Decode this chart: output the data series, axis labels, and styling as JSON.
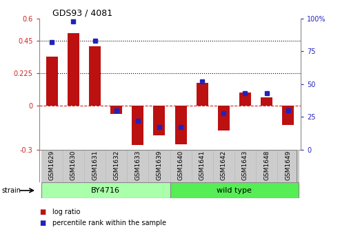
{
  "title": "GDS93 / 4081",
  "categories": [
    "GSM1629",
    "GSM1630",
    "GSM1631",
    "GSM1632",
    "GSM1633",
    "GSM1639",
    "GSM1640",
    "GSM1641",
    "GSM1642",
    "GSM1643",
    "GSM1648",
    "GSM1649"
  ],
  "log_ratios": [
    0.34,
    0.5,
    0.41,
    -0.055,
    -0.27,
    -0.2,
    -0.265,
    0.16,
    -0.17,
    0.09,
    0.06,
    -0.13
  ],
  "percentile_ranks": [
    82,
    98,
    83,
    30,
    22,
    17,
    17,
    52,
    28,
    43,
    43,
    30
  ],
  "strain_groups": [
    {
      "label": "BY4716",
      "start": 0,
      "end": 5,
      "color": "#aaffaa"
    },
    {
      "label": "wild type",
      "start": 6,
      "end": 11,
      "color": "#66ee66"
    }
  ],
  "bar_color": "#bb1111",
  "dot_color": "#2222bb",
  "left_ylim": [
    -0.3,
    0.6
  ],
  "right_ylim": [
    0,
    100
  ],
  "left_yticks": [
    -0.3,
    0,
    0.225,
    0.45,
    0.6
  ],
  "left_yticklabels": [
    "-0.3",
    "0",
    "0.225",
    "0.45",
    "0.6"
  ],
  "right_yticks": [
    0,
    25,
    50,
    75,
    100
  ],
  "right_yticklabels": [
    "0",
    "25",
    "50",
    "75",
    "100%"
  ],
  "hlines": [
    0.225,
    0.45
  ],
  "bar_width": 0.55,
  "background_color": "#ffffff",
  "plot_bg_color": "#ffffff",
  "xtick_bg_color": "#cccccc",
  "by4716_color": "#aaffaa",
  "wildtype_color": "#55ee55",
  "legend_items": [
    {
      "label": "log ratio",
      "color": "#bb1111"
    },
    {
      "label": "percentile rank within the sample",
      "color": "#2222bb"
    }
  ]
}
